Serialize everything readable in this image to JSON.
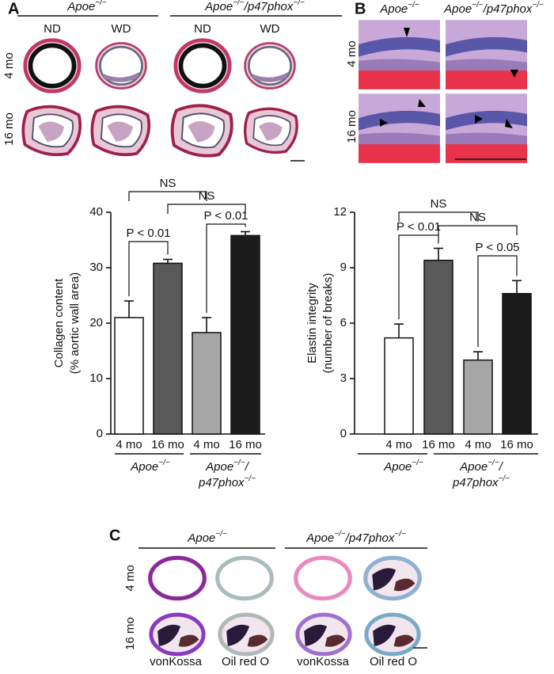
{
  "panel_labels": [
    "A",
    "B",
    "C"
  ],
  "panel_a": {
    "group_labels": [
      [
        "Apoe",
        "−/−"
      ],
      [
        "Apoe",
        "−/−",
        "/p47phox",
        "−/−"
      ]
    ],
    "diet_labels": [
      "ND",
      "WD",
      "ND",
      "WD"
    ],
    "row_labels": [
      "4 mo",
      "16 mo"
    ]
  },
  "panel_b": {
    "column_labels": [
      [
        "Apoe",
        "−/−"
      ],
      [
        "Apoe",
        "−/−",
        "/p47phox",
        "−/−"
      ]
    ],
    "row_labels": [
      "4 mo",
      "16 mo"
    ]
  },
  "panel_c": {
    "group_labels": [
      [
        "Apoe",
        "−/−"
      ],
      [
        "Apoe",
        "−/−",
        "/p47phox",
        "−/−"
      ]
    ],
    "row_labels": [
      "4 mo",
      "16 mo"
    ],
    "stain_labels": [
      "vonKossa",
      "Oil red O",
      "vonKossa",
      "Oil red O"
    ]
  },
  "chart_data": [
    {
      "type": "bar",
      "ylabel": [
        "Collagen content",
        "(% aortic wall area)"
      ],
      "categories": [
        "4 mo",
        "16 mo",
        "4 mo",
        "16 mo"
      ],
      "groups": [
        [
          [
            "Apoe",
            "−/−"
          ]
        ],
        [
          [
            "Apoe",
            "−/−",
            "/"
          ],
          [
            "p47phox",
            "−/−"
          ]
        ]
      ],
      "values": [
        21.0,
        30.8,
        18.3,
        35.8
      ],
      "errors": [
        3.0,
        0.7,
        2.7,
        0.7
      ],
      "colors": [
        "#ffffff",
        "#595959",
        "#a6a6a6",
        "#1c1c1c"
      ],
      "ylim": [
        0,
        40
      ],
      "yticks": [
        0,
        10,
        20,
        30,
        40
      ],
      "comparisons": [
        "NS",
        "NS",
        "P < 0.01",
        "P < 0.01"
      ]
    },
    {
      "type": "bar",
      "ylabel": [
        "Elastin integrity",
        "(number of breaks)"
      ],
      "categories": [
        "4 mo",
        "16 mo",
        "4 mo",
        "16 mo"
      ],
      "groups": [
        [
          [
            "Apoe",
            "−/−"
          ]
        ],
        [
          [
            "Apoe",
            "−/−",
            "/"
          ],
          [
            "p47phox",
            "−/−"
          ]
        ]
      ],
      "values": [
        5.2,
        9.4,
        4.0,
        7.6
      ],
      "errors": [
        0.75,
        0.65,
        0.45,
        0.7
      ],
      "colors": [
        "#ffffff",
        "#595959",
        "#a6a6a6",
        "#1c1c1c"
      ],
      "ylim": [
        0,
        12
      ],
      "yticks": [
        0,
        3,
        6,
        9,
        12
      ],
      "comparisons": [
        "NS",
        "NS",
        "P < 0.01",
        "P < 0.05"
      ]
    }
  ]
}
